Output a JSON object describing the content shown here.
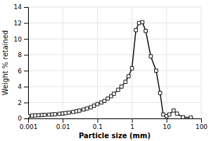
{
  "chart_data": {
    "type": "line",
    "xlabel": "Particle size (mm)",
    "ylabel": "Weight % retained",
    "x": [
      0.001,
      0.0013,
      0.0016,
      0.002,
      0.0025,
      0.003,
      0.004,
      0.005,
      0.006,
      0.008,
      0.01,
      0.012,
      0.015,
      0.02,
      0.025,
      0.03,
      0.04,
      0.05,
      0.065,
      0.08,
      0.1,
      0.13,
      0.16,
      0.2,
      0.25,
      0.3,
      0.4,
      0.5,
      0.65,
      0.8,
      1.0,
      1.3,
      1.6,
      2.0,
      2.5,
      3.5,
      5.0,
      6.5,
      8.0,
      10.0,
      12.0,
      16.0,
      20.0,
      30.0,
      50.0
    ],
    "values": [
      0.3,
      0.35,
      0.38,
      0.4,
      0.42,
      0.45,
      0.48,
      0.5,
      0.53,
      0.58,
      0.62,
      0.67,
      0.73,
      0.82,
      0.9,
      0.98,
      1.12,
      1.25,
      1.4,
      1.6,
      1.8,
      2.0,
      2.2,
      2.5,
      2.8,
      3.1,
      3.6,
      4.0,
      4.6,
      5.3,
      6.3,
      11.1,
      12.0,
      12.1,
      11.0,
      7.8,
      6.0,
      3.2,
      0.5,
      0.3,
      0.5,
      1.0,
      0.6,
      0.15,
      0.1
    ],
    "color": "#111111",
    "marker": "square",
    "log": "x",
    "xlim": [
      0.001,
      100
    ],
    "ylim": [
      0,
      14
    ],
    "xticks": [
      0.001,
      0.01,
      0.1,
      1,
      10,
      100
    ],
    "yticks": [
      0,
      2,
      4,
      6,
      8,
      10,
      12,
      14
    ],
    "grid": true
  }
}
